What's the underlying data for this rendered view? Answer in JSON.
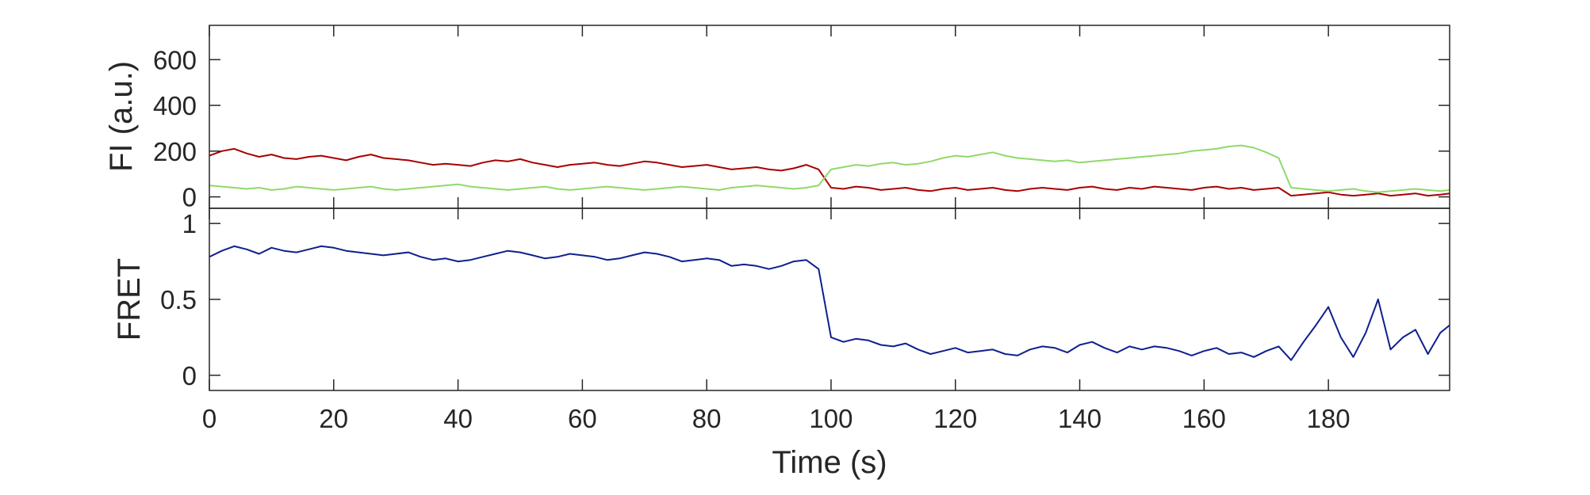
{
  "chart_data": [
    {
      "type": "line",
      "panel": "top",
      "ylabel": "FI (a.u.)",
      "ylim": [
        -50,
        750
      ],
      "yticks": [
        0,
        200,
        400,
        600
      ],
      "yticklabels": [
        "0",
        "200",
        "400",
        "600"
      ],
      "xlim": [
        0,
        199.5
      ],
      "grid": false,
      "series": [
        {
          "color": "#a80000",
          "time_s": [
            0,
            2,
            4,
            6,
            8,
            10,
            12,
            14,
            16,
            18,
            20,
            22,
            24,
            26,
            28,
            30,
            32,
            34,
            36,
            38,
            40,
            42,
            44,
            46,
            48,
            50,
            52,
            54,
            56,
            58,
            60,
            62,
            64,
            66,
            68,
            70,
            72,
            74,
            76,
            78,
            80,
            82,
            84,
            86,
            88,
            90,
            92,
            94,
            96,
            98,
            100,
            102,
            104,
            106,
            108,
            110,
            112,
            114,
            116,
            118,
            120,
            122,
            124,
            126,
            128,
            130,
            132,
            134,
            136,
            138,
            140,
            142,
            144,
            146,
            148,
            150,
            152,
            154,
            156,
            158,
            160,
            162,
            164,
            166,
            168,
            170,
            172,
            174,
            176,
            178,
            180,
            182,
            184,
            186,
            188,
            190,
            192,
            194,
            196,
            198,
            199.5
          ],
          "values": [
            180,
            200,
            210,
            190,
            175,
            185,
            170,
            165,
            175,
            180,
            170,
            160,
            175,
            185,
            170,
            165,
            160,
            150,
            140,
            145,
            140,
            135,
            150,
            160,
            155,
            165,
            150,
            140,
            130,
            140,
            145,
            150,
            140,
            135,
            145,
            155,
            150,
            140,
            130,
            135,
            140,
            130,
            120,
            125,
            130,
            120,
            115,
            125,
            140,
            120,
            40,
            35,
            45,
            40,
            30,
            35,
            40,
            30,
            25,
            35,
            40,
            30,
            35,
            40,
            30,
            25,
            35,
            40,
            35,
            30,
            40,
            45,
            35,
            30,
            40,
            35,
            45,
            40,
            35,
            30,
            40,
            45,
            35,
            40,
            30,
            35,
            40,
            5,
            10,
            15,
            20,
            10,
            5,
            10,
            15,
            5,
            10,
            15,
            5,
            10,
            15
          ]
        },
        {
          "color": "#90d96a",
          "time_s": [
            0,
            2,
            4,
            6,
            8,
            10,
            12,
            14,
            16,
            18,
            20,
            22,
            24,
            26,
            28,
            30,
            32,
            34,
            36,
            38,
            40,
            42,
            44,
            46,
            48,
            50,
            52,
            54,
            56,
            58,
            60,
            62,
            64,
            66,
            68,
            70,
            72,
            74,
            76,
            78,
            80,
            82,
            84,
            86,
            88,
            90,
            92,
            94,
            96,
            98,
            100,
            102,
            104,
            106,
            108,
            110,
            112,
            114,
            116,
            118,
            120,
            122,
            124,
            126,
            128,
            130,
            132,
            134,
            136,
            138,
            140,
            142,
            144,
            146,
            148,
            150,
            152,
            154,
            156,
            158,
            160,
            162,
            164,
            166,
            168,
            170,
            172,
            174,
            176,
            178,
            180,
            182,
            184,
            186,
            188,
            190,
            192,
            194,
            196,
            198,
            199.5
          ],
          "values": [
            50,
            45,
            40,
            35,
            40,
            30,
            35,
            45,
            40,
            35,
            30,
            35,
            40,
            45,
            35,
            30,
            35,
            40,
            45,
            50,
            55,
            45,
            40,
            35,
            30,
            35,
            40,
            45,
            35,
            30,
            35,
            40,
            45,
            40,
            35,
            30,
            35,
            40,
            45,
            40,
            35,
            30,
            40,
            45,
            50,
            45,
            40,
            35,
            40,
            50,
            120,
            130,
            140,
            135,
            145,
            150,
            140,
            145,
            155,
            170,
            180,
            175,
            185,
            195,
            180,
            170,
            165,
            160,
            155,
            160,
            150,
            155,
            160,
            165,
            170,
            175,
            180,
            185,
            190,
            200,
            205,
            210,
            220,
            225,
            215,
            195,
            170,
            40,
            35,
            30,
            25,
            30,
            35,
            25,
            20,
            25,
            30,
            35,
            30,
            25,
            30
          ]
        }
      ]
    },
    {
      "type": "line",
      "panel": "bottom",
      "xlabel": "Time (s)",
      "ylabel": "FRET",
      "ylim": [
        -0.1,
        1.1
      ],
      "yticks": [
        0,
        0.5,
        1
      ],
      "yticklabels": [
        "0",
        "0.5",
        "1"
      ],
      "xlim": [
        0,
        199.5
      ],
      "xticks": [
        0,
        20,
        40,
        60,
        80,
        100,
        120,
        140,
        160,
        180
      ],
      "xticklabels": [
        "0",
        "20",
        "40",
        "60",
        "80",
        "100",
        "120",
        "140",
        "160",
        "180"
      ],
      "grid": false,
      "series": [
        {
          "color": "#0f1f8f",
          "time_s": [
            0,
            2,
            4,
            6,
            8,
            10,
            12,
            14,
            16,
            18,
            20,
            22,
            24,
            26,
            28,
            30,
            32,
            34,
            36,
            38,
            40,
            42,
            44,
            46,
            48,
            50,
            52,
            54,
            56,
            58,
            60,
            62,
            64,
            66,
            68,
            70,
            72,
            74,
            76,
            78,
            80,
            82,
            84,
            86,
            88,
            90,
            92,
            94,
            96,
            98,
            100,
            102,
            104,
            106,
            108,
            110,
            112,
            114,
            116,
            118,
            120,
            122,
            124,
            126,
            128,
            130,
            132,
            134,
            136,
            138,
            140,
            142,
            144,
            146,
            148,
            150,
            152,
            154,
            156,
            158,
            160,
            162,
            164,
            166,
            168,
            170,
            172,
            174,
            176,
            178,
            180,
            182,
            184,
            186,
            188,
            190,
            192,
            194,
            196,
            198,
            199.5
          ],
          "values": [
            0.78,
            0.82,
            0.85,
            0.83,
            0.8,
            0.84,
            0.82,
            0.81,
            0.83,
            0.85,
            0.84,
            0.82,
            0.81,
            0.8,
            0.79,
            0.8,
            0.81,
            0.78,
            0.76,
            0.77,
            0.75,
            0.76,
            0.78,
            0.8,
            0.82,
            0.81,
            0.79,
            0.77,
            0.78,
            0.8,
            0.79,
            0.78,
            0.76,
            0.77,
            0.79,
            0.81,
            0.8,
            0.78,
            0.75,
            0.76,
            0.77,
            0.76,
            0.72,
            0.73,
            0.72,
            0.7,
            0.72,
            0.75,
            0.76,
            0.7,
            0.25,
            0.22,
            0.24,
            0.23,
            0.2,
            0.19,
            0.21,
            0.17,
            0.14,
            0.16,
            0.18,
            0.15,
            0.16,
            0.17,
            0.14,
            0.13,
            0.17,
            0.19,
            0.18,
            0.15,
            0.2,
            0.22,
            0.18,
            0.15,
            0.19,
            0.17,
            0.19,
            0.18,
            0.16,
            0.13,
            0.16,
            0.18,
            0.14,
            0.15,
            0.12,
            0.16,
            0.19,
            0.1,
            0.22,
            0.33,
            0.45,
            0.25,
            0.12,
            0.28,
            0.5,
            0.17,
            0.25,
            0.3,
            0.14,
            0.28,
            0.33
          ]
        }
      ]
    }
  ]
}
